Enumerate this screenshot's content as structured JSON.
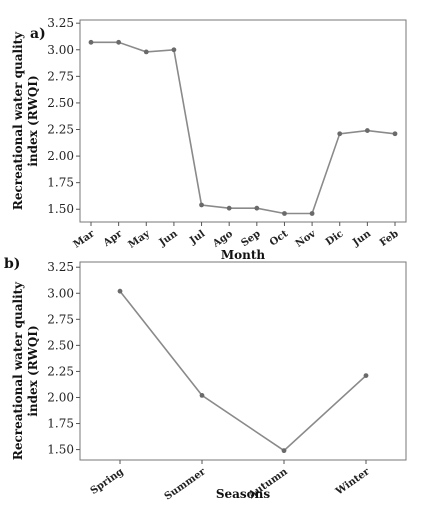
{
  "chart_data": [
    {
      "type": "line",
      "panel_label": "a)",
      "categories": [
        "Mar",
        "Apr",
        "May",
        "Jun",
        "Jul",
        "Ago",
        "Sep",
        "Oct",
        "Nov",
        "Dic",
        "Jun",
        "Feb"
      ],
      "values": [
        3.07,
        3.07,
        2.98,
        3.0,
        1.54,
        1.51,
        1.51,
        1.46,
        1.46,
        2.21,
        2.24,
        2.21
      ],
      "ylim": [
        1.38,
        3.28
      ],
      "yticks": [
        "1.50",
        "1.75",
        "2.00",
        "2.25",
        "2.50",
        "2.75",
        "3.00",
        "3.25"
      ],
      "xlabel": "Month",
      "ylabel_line1": "Recreational water quality",
      "ylabel_line2": "index (RWQI)",
      "grid": false
    },
    {
      "type": "line",
      "panel_label": "b)",
      "categories": [
        "Spring",
        "Summer",
        "Autumn",
        "Winter"
      ],
      "values": [
        3.02,
        2.02,
        1.49,
        2.21
      ],
      "ylim": [
        1.4,
        3.3
      ],
      "yticks": [
        "1.50",
        "1.75",
        "2.00",
        "2.25",
        "2.50",
        "2.75",
        "3.00",
        "3.25"
      ],
      "xlabel": "Seasons",
      "ylabel_line1": "Recreational water quality",
      "ylabel_line2": "index (RWQI)",
      "grid": false
    }
  ],
  "colors": {
    "line": "#8a8a8a",
    "marker": "#6a6a6a",
    "frame": "#777777"
  }
}
